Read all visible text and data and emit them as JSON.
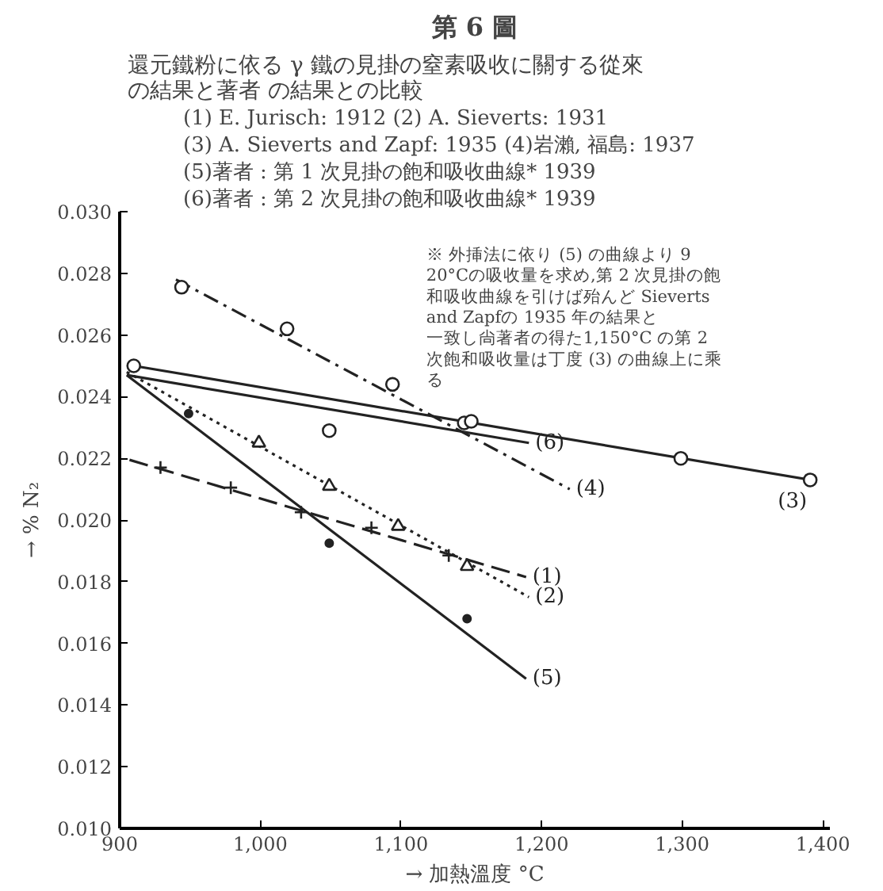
{
  "chart_data": {
    "type": "line",
    "title": "第 6 圖",
    "subtitle": "還元鐵粉に依る γ 鐵の見掛の窒素吸收に關する從來の結果と著者 の結果との比較",
    "xlabel": "→ 加熱溫度 °C",
    "ylabel": "→ % N₂",
    "annotations": [
      "(1) E. Jurisch: 1912                         (2) A. Sieverts: 1931",
      "(3) A. Sieverts and Zapf: 1935 (4)岩瀨, 福島: 1937",
      "(5)著者 : 第 1 次見掛の飽和吸收曲線* 1939",
      "(6)著者 : 第 2 次見掛の飽和吸收曲線* 1939",
      "※  外挿法に依り (5) の曲線より 920°Cの吸收量を求め,第 2 次見掛の飽和吸收曲線を引けば殆んど Sieverts and Zapfの 1935 年の結果と一致し尙著者の得た1,150°C の第 2 次飽和吸收量は丁度 (3) の曲線上に乘る"
    ],
    "xlim": [
      900,
      1405
    ],
    "ylim": [
      0.01,
      0.03
    ],
    "xticks": [
      {
        "value": 900,
        "label": "900"
      },
      {
        "value": 1000,
        "label": "1,000"
      },
      {
        "value": 1100,
        "label": "1,100"
      },
      {
        "value": 1200,
        "label": "1,200"
      },
      {
        "value": 1300,
        "label": "1,300"
      },
      {
        "value": 1400,
        "label": "1,400"
      }
    ],
    "yticks": [
      {
        "value": 0.01,
        "label": "0.010"
      },
      {
        "value": 0.012,
        "label": "0.012"
      },
      {
        "value": 0.014,
        "label": "0.014"
      },
      {
        "value": 0.016,
        "label": "0.016"
      },
      {
        "value": 0.018,
        "label": "0.018"
      },
      {
        "value": 0.02,
        "label": "0.020"
      },
      {
        "value": 0.022,
        "label": "0.022"
      },
      {
        "value": 0.024,
        "label": "0.024"
      },
      {
        "value": 0.026,
        "label": "0.026"
      },
      {
        "value": 0.028,
        "label": "0.028"
      },
      {
        "value": 0.03,
        "label": "0.030"
      }
    ],
    "grid": false,
    "legend": false,
    "series": [
      {
        "name": "(1)",
        "line_style": "dashed",
        "marker": "none",
        "color": "#222222",
        "x": [
          907,
          1189
        ],
        "values": [
          0.02195,
          0.01815
        ]
      },
      {
        "type": "scatter",
        "marker": "cross",
        "color": "#222222",
        "x": [
          929,
          979,
          1029,
          1079,
          1134
        ],
        "values": [
          0.0217,
          0.02105,
          0.02025,
          0.01975,
          0.01885
        ]
      },
      {
        "name": "(2)",
        "line_style": "dotted",
        "marker": "none",
        "color": "#222222",
        "x": [
          905,
          1191
        ],
        "values": [
          0.0248,
          0.0175
        ]
      },
      {
        "type": "scatter",
        "marker": "triangle",
        "color": "#222222",
        "x": [
          999,
          1049,
          1098,
          1147
        ],
        "values": [
          0.0225,
          0.0211,
          0.0198,
          0.0185
        ]
      },
      {
        "name": "(3)",
        "line_style": "solid",
        "marker": "none",
        "color": "#222222",
        "x": [
          910,
          1391
        ],
        "values": [
          0.025,
          0.0213
        ]
      },
      {
        "type": "scatter",
        "marker": "circle",
        "color": "#222222",
        "x": [
          910,
          1299,
          1391
        ],
        "values": [
          0.025,
          0.022,
          0.0213
        ]
      },
      {
        "name": "(4)",
        "line_style": "dashdot",
        "marker": "none",
        "color": "#222222",
        "x": [
          940,
          1220
        ],
        "values": [
          0.0278,
          0.021
        ]
      },
      {
        "type": "scatter",
        "marker": "circle",
        "color": "#222222",
        "x": [
          944,
          1019,
          1094,
          1145
        ],
        "values": [
          0.02755,
          0.0262,
          0.0244,
          0.02315
        ]
      },
      {
        "name": "(5)",
        "line_style": "solid",
        "marker": "none",
        "color": "#222222",
        "x": [
          905,
          1189
        ],
        "values": [
          0.0247,
          0.01485
        ]
      },
      {
        "type": "scatter",
        "marker": "dot",
        "color": "#222222",
        "x": [
          949,
          1049,
          1147
        ],
        "values": [
          0.02345,
          0.01925,
          0.0168
        ]
      },
      {
        "name": "(6)",
        "line_style": "solid",
        "marker": "none",
        "color": "#222222",
        "x": [
          905,
          1191
        ],
        "values": [
          0.0247,
          0.0225
        ]
      },
      {
        "type": "scatter",
        "marker": "circle",
        "color": "#222222",
        "x": [
          1049,
          1150
        ],
        "values": [
          0.0229,
          0.0232
        ]
      }
    ]
  }
}
